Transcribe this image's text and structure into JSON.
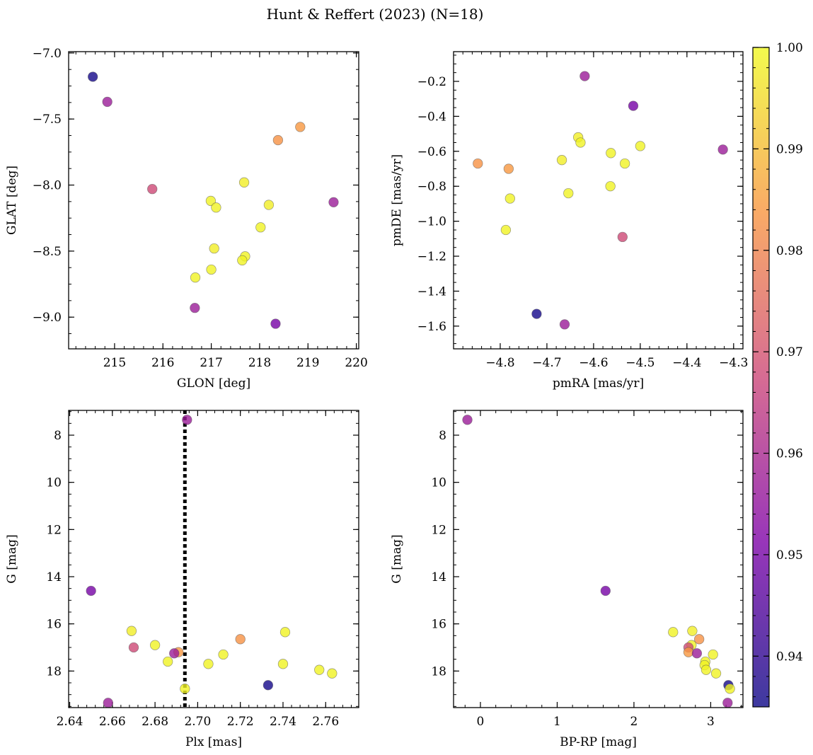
{
  "figure": {
    "title": "Hunt & Reffert (2023) (N=18)"
  },
  "colormap": {
    "name": "plasma",
    "stops": [
      "#0d0887",
      "#7e03a8",
      "#cc4778",
      "#f89540",
      "#f0f921"
    ],
    "alpha": 0.8,
    "vmin": 0.935,
    "vmax": 1.0,
    "ticks": [
      "0.94",
      "0.95",
      "0.96",
      "0.97",
      "0.98",
      "0.99",
      "1.00"
    ]
  },
  "chart_data": [
    {
      "id": "glon-glat",
      "type": "scatter",
      "xlabel": "GLON [deg]",
      "ylabel": "GLAT [deg]",
      "xlim": [
        214.05,
        220.05
      ],
      "ylim": [
        -9.24,
        -6.99
      ],
      "xticks": [
        215,
        216,
        217,
        218,
        219,
        220
      ],
      "yticks": [
        -7.0,
        -7.5,
        -8.0,
        -8.5,
        -9.0
      ],
      "ytick_labels": [
        "−7.0",
        "−7.5",
        "−8.0",
        "−8.5",
        "−9.0"
      ],
      "xtick_labels": [
        "215",
        "216",
        "217",
        "218",
        "219",
        "220"
      ],
      "points": [
        {
          "x": 214.55,
          "y": -7.18,
          "c": 0.936
        },
        {
          "x": 214.85,
          "y": -7.37,
          "c": 0.957
        },
        {
          "x": 215.78,
          "y": -8.03,
          "c": 0.968
        },
        {
          "x": 218.38,
          "y": -7.66,
          "c": 0.983
        },
        {
          "x": 218.84,
          "y": -7.56,
          "c": 0.984
        },
        {
          "x": 219.53,
          "y": -8.13,
          "c": 0.957
        },
        {
          "x": 217.68,
          "y": -7.98,
          "c": 0.998
        },
        {
          "x": 216.99,
          "y": -8.12,
          "c": 0.999
        },
        {
          "x": 217.1,
          "y": -8.17,
          "c": 0.999
        },
        {
          "x": 218.19,
          "y": -8.15,
          "c": 0.998
        },
        {
          "x": 218.02,
          "y": -8.32,
          "c": 0.999
        },
        {
          "x": 217.06,
          "y": -8.48,
          "c": 0.998
        },
        {
          "x": 217.7,
          "y": -8.54,
          "c": 0.999
        },
        {
          "x": 217.64,
          "y": -8.57,
          "c": 0.999
        },
        {
          "x": 217.0,
          "y": -8.64,
          "c": 0.999
        },
        {
          "x": 216.67,
          "y": -8.7,
          "c": 0.999
        },
        {
          "x": 216.66,
          "y": -8.93,
          "c": 0.957
        },
        {
          "x": 218.33,
          "y": -9.05,
          "c": 0.95
        }
      ]
    },
    {
      "id": "pmra-pmde",
      "type": "scatter",
      "xlabel": "pmRA [mas/yr]",
      "ylabel": "pmDE [mas/yr]",
      "xlim": [
        -4.9,
        -4.28
      ],
      "ylim": [
        -1.73,
        -0.03
      ],
      "xticks": [
        -4.8,
        -4.7,
        -4.6,
        -4.5,
        -4.4,
        -4.3
      ],
      "xtick_labels": [
        "−4.8",
        "−4.7",
        "−4.6",
        "−4.5",
        "−4.4",
        "−4.3"
      ],
      "yticks": [
        -0.2,
        -0.4,
        -0.6,
        -0.8,
        -1.0,
        -1.2,
        -1.4,
        -1.6
      ],
      "ytick_labels": [
        "−0.2",
        "−0.4",
        "−0.6",
        "−0.8",
        "−1.0",
        "−1.2",
        "−1.4",
        "−1.6"
      ],
      "points": [
        {
          "x": -4.619,
          "y": -0.17,
          "c": 0.957
        },
        {
          "x": -4.515,
          "y": -0.34,
          "c": 0.95
        },
        {
          "x": -4.323,
          "y": -0.59,
          "c": 0.957
        },
        {
          "x": -4.848,
          "y": -0.67,
          "c": 0.983
        },
        {
          "x": -4.782,
          "y": -0.7,
          "c": 0.984
        },
        {
          "x": -4.633,
          "y": -0.52,
          "c": 0.998
        },
        {
          "x": -4.628,
          "y": -0.55,
          "c": 0.999
        },
        {
          "x": -4.5,
          "y": -0.57,
          "c": 0.999
        },
        {
          "x": -4.563,
          "y": -0.61,
          "c": 0.999
        },
        {
          "x": -4.668,
          "y": -0.65,
          "c": 0.998
        },
        {
          "x": -4.533,
          "y": -0.67,
          "c": 0.999
        },
        {
          "x": -4.564,
          "y": -0.8,
          "c": 0.999
        },
        {
          "x": -4.654,
          "y": -0.84,
          "c": 0.999
        },
        {
          "x": -4.779,
          "y": -0.87,
          "c": 0.999
        },
        {
          "x": -4.788,
          "y": -1.05,
          "c": 0.999
        },
        {
          "x": -4.538,
          "y": -1.09,
          "c": 0.968
        },
        {
          "x": -4.722,
          "y": -1.53,
          "c": 0.936
        },
        {
          "x": -4.662,
          "y": -1.59,
          "c": 0.957
        }
      ]
    },
    {
      "id": "plx-g",
      "type": "scatter",
      "xlabel": "Plx [mas]",
      "ylabel": "G [mag]",
      "xlim": [
        2.6395,
        2.7755
      ],
      "ylim": [
        19.55,
        6.95
      ],
      "xticks": [
        2.64,
        2.66,
        2.68,
        2.7,
        2.72,
        2.74,
        2.76
      ],
      "xtick_labels": [
        "2.64",
        "2.66",
        "2.68",
        "2.70",
        "2.72",
        "2.74",
        "2.76"
      ],
      "yticks": [
        8,
        10,
        12,
        14,
        16,
        18
      ],
      "ytick_labels": [
        "8",
        "10",
        "12",
        "14",
        "16",
        "18"
      ],
      "vline": 2.694,
      "points": [
        {
          "x": 2.695,
          "y": 7.35,
          "c": 0.957
        },
        {
          "x": 2.65,
          "y": 14.6,
          "c": 0.95
        },
        {
          "x": 2.669,
          "y": 16.3,
          "c": 0.998
        },
        {
          "x": 2.741,
          "y": 16.35,
          "c": 0.999
        },
        {
          "x": 2.72,
          "y": 16.65,
          "c": 0.983
        },
        {
          "x": 2.68,
          "y": 16.9,
          "c": 0.999
        },
        {
          "x": 2.67,
          "y": 17.0,
          "c": 0.968
        },
        {
          "x": 2.691,
          "y": 17.2,
          "c": 0.984
        },
        {
          "x": 2.689,
          "y": 17.25,
          "c": 0.957
        },
        {
          "x": 2.712,
          "y": 17.3,
          "c": 0.999
        },
        {
          "x": 2.686,
          "y": 17.6,
          "c": 0.999
        },
        {
          "x": 2.705,
          "y": 17.7,
          "c": 0.999
        },
        {
          "x": 2.74,
          "y": 17.7,
          "c": 0.999
        },
        {
          "x": 2.757,
          "y": 17.95,
          "c": 0.999
        },
        {
          "x": 2.763,
          "y": 18.1,
          "c": 0.999
        },
        {
          "x": 2.733,
          "y": 18.6,
          "c": 0.936
        },
        {
          "x": 2.694,
          "y": 18.75,
          "c": 0.999
        },
        {
          "x": 2.658,
          "y": 19.35,
          "c": 0.957
        }
      ]
    },
    {
      "id": "bprp-g",
      "type": "scatter",
      "xlabel": "BP-RP [mag]",
      "ylabel": "G [mag]",
      "xlim": [
        -0.35,
        3.42
      ],
      "ylim": [
        19.55,
        6.95
      ],
      "xticks": [
        0,
        1,
        2,
        3
      ],
      "xtick_labels": [
        "0",
        "1",
        "2",
        "3"
      ],
      "yticks": [
        8,
        10,
        12,
        14,
        16,
        18
      ],
      "ytick_labels": [
        "8",
        "10",
        "12",
        "14",
        "16",
        "18"
      ],
      "points": [
        {
          "x": -0.17,
          "y": 7.35,
          "c": 0.957
        },
        {
          "x": 1.63,
          "y": 14.6,
          "c": 0.95
        },
        {
          "x": 2.51,
          "y": 16.35,
          "c": 0.999
        },
        {
          "x": 2.76,
          "y": 16.3,
          "c": 0.998
        },
        {
          "x": 2.85,
          "y": 16.65,
          "c": 0.983
        },
        {
          "x": 2.75,
          "y": 16.9,
          "c": 0.999
        },
        {
          "x": 2.71,
          "y": 17.0,
          "c": 0.968
        },
        {
          "x": 2.71,
          "y": 17.2,
          "c": 0.984
        },
        {
          "x": 2.82,
          "y": 17.25,
          "c": 0.957
        },
        {
          "x": 3.03,
          "y": 17.3,
          "c": 0.999
        },
        {
          "x": 2.93,
          "y": 17.6,
          "c": 0.999
        },
        {
          "x": 2.92,
          "y": 17.75,
          "c": 0.999
        },
        {
          "x": 2.94,
          "y": 17.95,
          "c": 0.999
        },
        {
          "x": 3.07,
          "y": 18.1,
          "c": 0.999
        },
        {
          "x": 3.23,
          "y": 18.6,
          "c": 0.936
        },
        {
          "x": 3.25,
          "y": 18.75,
          "c": 0.999
        },
        {
          "x": 3.22,
          "y": 19.35,
          "c": 0.957
        }
      ]
    }
  ]
}
